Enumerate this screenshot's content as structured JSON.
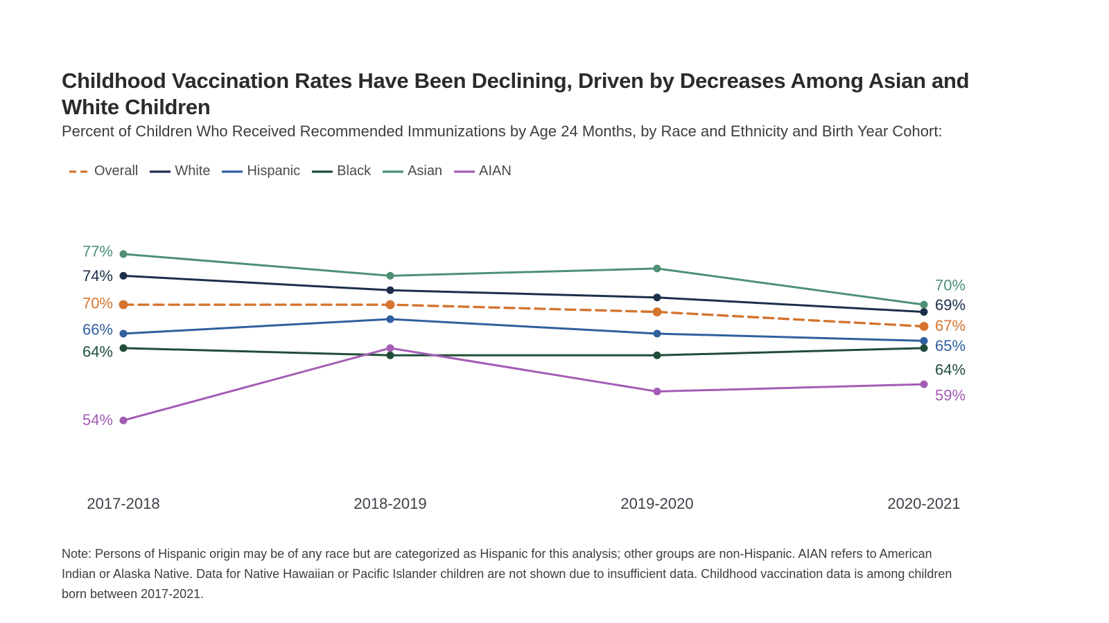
{
  "page": {
    "title": "Childhood Vaccination Rates Have Been Declining, Driven by Decreases Among Asian and White Children",
    "subtitle": "Percent of Children Who Received Recommended Immunizations by Age 24 Months, by Race and Ethnicity and Birth Year Cohort:",
    "note": "Note: Persons of Hispanic origin may be of any race but are categorized as Hispanic for this analysis; other groups are non-Hispanic. AIAN refers to American Indian or Alaska Native. Data for Native Hawaiian or Pacific Islander children are not shown due to insufficient data. Childhood vaccination data is among children born between 2017-2021."
  },
  "chart_data": {
    "type": "line",
    "x_categories": [
      "2017-2018",
      "2018-2019",
      "2019-2020",
      "2020-2021"
    ],
    "unit": "percent",
    "ylim": [
      50,
      80
    ],
    "grid": false,
    "axes_shown": false,
    "legend_position": "top-left",
    "series": [
      {
        "name": "Overall",
        "color": "#d4742f",
        "style": "dashed",
        "values": [
          70,
          70,
          69,
          67
        ],
        "first_label": "70%",
        "last_label": "67%"
      },
      {
        "name": "White",
        "color": "#1c2e4a",
        "style": "solid",
        "values": [
          74,
          72,
          71,
          69
        ],
        "first_label": "74%",
        "last_label": "69%"
      },
      {
        "name": "Hispanic",
        "color": "#2f5f9e",
        "style": "solid",
        "values": [
          66,
          68,
          66,
          65
        ],
        "first_label": "66%",
        "last_label": "65%"
      },
      {
        "name": "Black",
        "color": "#1f4d38",
        "style": "solid",
        "values": [
          64,
          63,
          63,
          64
        ],
        "first_label": "64%",
        "last_label": "64%"
      },
      {
        "name": "Asian",
        "color": "#4d9073",
        "style": "solid",
        "values": [
          77,
          74,
          75,
          70
        ],
        "first_label": "77%",
        "last_label": "70%"
      },
      {
        "name": "AIAN",
        "color": "#a35cb5",
        "style": "solid",
        "values": [
          54,
          64,
          58,
          59
        ],
        "first_label": "54%",
        "last_label": "59%"
      }
    ]
  }
}
